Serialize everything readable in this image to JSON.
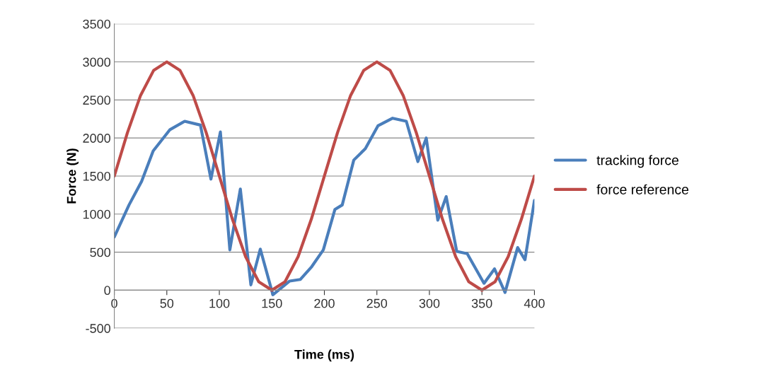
{
  "chart_data": {
    "type": "line",
    "xlabel": "Time (ms)",
    "ylabel": "Force (N)",
    "xlim": [
      0,
      400
    ],
    "xticks": [
      0,
      50,
      100,
      150,
      200,
      250,
      300,
      350,
      400
    ],
    "ylim": [
      -500,
      3500
    ],
    "yticks": [
      -500,
      0,
      500,
      1000,
      1500,
      2000,
      2500,
      3000,
      3500
    ],
    "grid": "y",
    "legend": "right",
    "marker": "none",
    "line_style": "solid",
    "series": [
      {
        "name": "tracking force",
        "color": "#4a7ebb",
        "x": [
          0,
          14,
          26,
          37,
          53,
          67,
          82,
          92,
          101,
          110,
          120,
          130,
          139,
          151,
          167,
          177,
          188,
          199,
          210,
          217,
          228,
          239,
          251,
          265,
          278,
          289,
          297,
          308,
          316,
          326,
          336,
          352,
          362,
          372,
          384,
          391,
          400
        ],
        "values": [
          700,
          1120,
          1430,
          1830,
          2110,
          2220,
          2170,
          1460,
          2080,
          530,
          1330,
          70,
          540,
          -60,
          120,
          140,
          310,
          530,
          1060,
          1120,
          1710,
          1860,
          2160,
          2260,
          2220,
          1690,
          2000,
          920,
          1230,
          510,
          480,
          90,
          280,
          -30,
          560,
          400,
          1180
        ]
      },
      {
        "name": "force reference",
        "color": "#be4b48",
        "x": [
          0,
          12.5,
          25,
          37.5,
          50,
          62.5,
          75,
          87.5,
          100,
          112.5,
          125,
          137.5,
          150,
          162.5,
          175,
          187.5,
          200,
          212.5,
          225,
          237.5,
          250,
          262.5,
          275,
          287.5,
          300,
          312.5,
          325,
          337.5,
          350,
          362.5,
          375,
          387.5,
          400
        ],
        "values": [
          1500,
          2070,
          2560,
          2890,
          3000,
          2890,
          2560,
          2070,
          1500,
          930,
          440,
          110,
          0,
          110,
          440,
          930,
          1500,
          2070,
          2560,
          2890,
          3000,
          2890,
          2560,
          2070,
          1500,
          930,
          440,
          110,
          0,
          110,
          440,
          930,
          1500
        ]
      }
    ]
  }
}
